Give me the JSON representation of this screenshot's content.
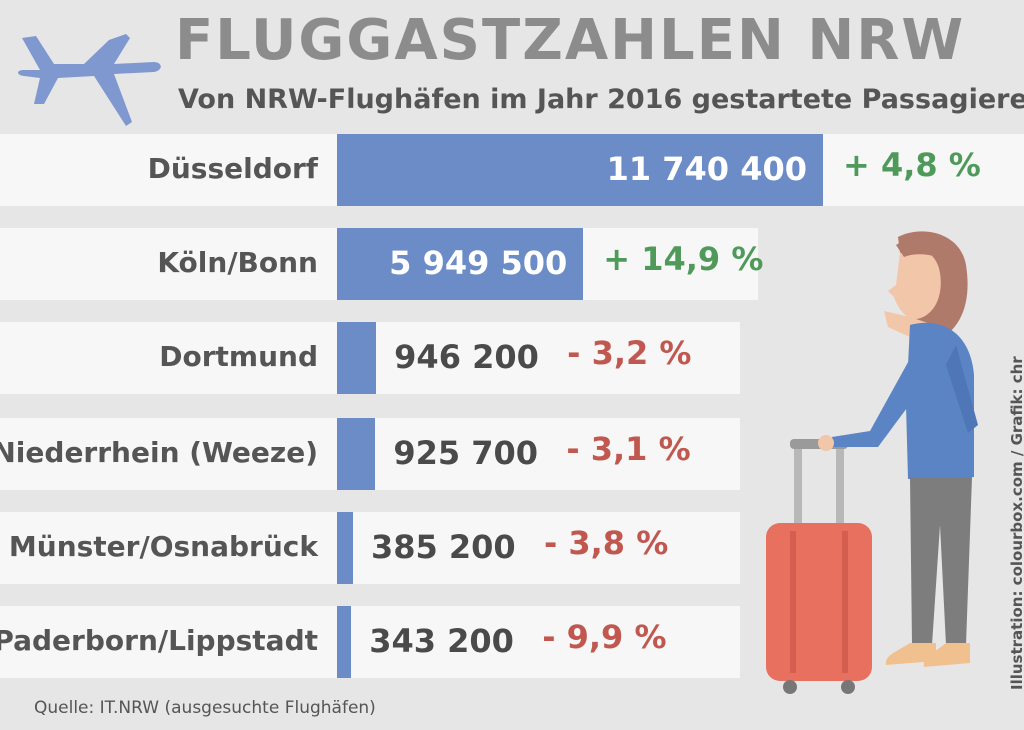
{
  "colors": {
    "bar": "#6b8cc6",
    "positive": "#4f9a5a",
    "negative": "#c0584f",
    "title": "#8c8c8c"
  },
  "icons": [
    "airplane-icon",
    "traveler-illustration"
  ],
  "chart_data": {
    "type": "bar",
    "orientation": "horizontal",
    "title": "FLUGGASTZAHLEN NRW",
    "subtitle": "Von NRW-Flughäfen im Jahr 2016 gestartete Passagiere",
    "categories": [
      "Düsseldorf",
      "Köln/Bonn",
      "Dortmund",
      "Niederrhein (Weeze)",
      "Münster/Osnabrück",
      "Paderborn/Lippstadt"
    ],
    "values": [
      11740400,
      5949500,
      946200,
      925700,
      385200,
      343200
    ],
    "value_labels": [
      "11 740 400",
      "5 949 500",
      "946 200",
      "925 700",
      "385 200",
      "343 200"
    ],
    "changes": [
      "+ 4,8 %",
      "+ 14,9 %",
      "- 3,2 %",
      "- 3,1 %",
      "- 3,8 %",
      "- 9,9 %"
    ],
    "source": "Quelle: IT.NRW (ausgesuchte Flughäfen)",
    "credit": "Illustration: colourbox.com / Grafik: chr"
  }
}
